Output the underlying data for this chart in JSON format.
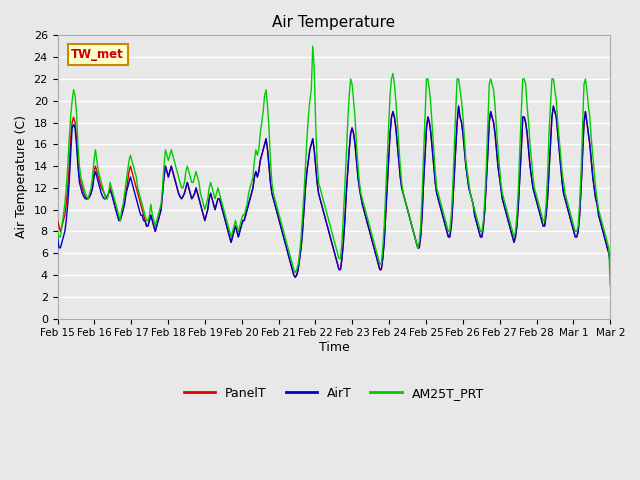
{
  "title": "Air Temperature",
  "ylabel": "Air Temperature (C)",
  "xlabel": "Time",
  "annotation_text": "TW_met",
  "annotation_bg": "#ffffcc",
  "annotation_border": "#cc8800",
  "annotation_text_color": "#cc0000",
  "ylim": [
    0,
    26
  ],
  "yticks": [
    0,
    2,
    4,
    6,
    8,
    10,
    12,
    14,
    16,
    18,
    20,
    22,
    24,
    26
  ],
  "bg_color": "#e8e8e8",
  "grid_color": "#ffffff",
  "legend_labels": [
    "PanelT",
    "AirT",
    "AM25T_PRT"
  ],
  "legend_colors": [
    "#dd0000",
    "#0000cc",
    "#00cc00"
  ],
  "line_width": 1.0,
  "xtick_labels": [
    "Feb 15",
    "Feb 16",
    "Feb 17",
    "Feb 18",
    "Feb 19",
    "Feb 20",
    "Feb 21",
    "Feb 22",
    "Feb 23",
    "Feb 24",
    "Feb 25",
    "Feb 26",
    "Feb 27",
    "Feb 28",
    "Mar 1",
    "Mar 2"
  ],
  "panelT": [
    9.0,
    8.5,
    8.0,
    8.5,
    9.0,
    9.5,
    10.5,
    12.0,
    14.0,
    16.5,
    18.0,
    18.5,
    18.0,
    16.5,
    14.5,
    13.0,
    12.5,
    12.0,
    11.5,
    11.2,
    11.0,
    11.0,
    11.2,
    11.5,
    12.0,
    13.5,
    14.0,
    13.5,
    13.0,
    12.5,
    12.0,
    11.8,
    11.5,
    11.2,
    11.0,
    11.5,
    12.0,
    11.5,
    11.0,
    10.5,
    10.0,
    9.5,
    9.2,
    9.0,
    9.5,
    10.0,
    11.0,
    11.5,
    12.5,
    13.5,
    14.0,
    13.5,
    13.0,
    12.5,
    12.0,
    11.5,
    11.0,
    10.5,
    10.0,
    9.5,
    9.0,
    8.5,
    8.5,
    9.0,
    9.5,
    9.0,
    8.5,
    8.0,
    8.5,
    9.0,
    9.5,
    10.0,
    11.5,
    13.0,
    14.0,
    13.5,
    13.0,
    13.5,
    14.0,
    13.5,
    13.0,
    12.5,
    12.0,
    11.5,
    11.2,
    11.0,
    11.2,
    11.5,
    12.0,
    12.5,
    12.0,
    11.5,
    11.0,
    11.2,
    11.5,
    12.0,
    11.5,
    11.0,
    10.5,
    10.0,
    9.5,
    9.0,
    9.5,
    10.0,
    11.0,
    11.5,
    11.0,
    10.5,
    10.0,
    10.5,
    11.0,
    11.0,
    10.5,
    10.0,
    9.5,
    9.0,
    8.5,
    8.0,
    7.5,
    7.0,
    7.5,
    8.0,
    8.5,
    8.0,
    7.5,
    8.0,
    8.5,
    9.0,
    9.0,
    9.5,
    10.0,
    10.5,
    11.0,
    11.5,
    12.0,
    13.0,
    13.5,
    13.0,
    13.5,
    14.5,
    15.0,
    15.5,
    16.0,
    16.5,
    15.5,
    14.0,
    12.5,
    11.5,
    11.0,
    10.5,
    10.0,
    9.5,
    9.0,
    8.5,
    8.0,
    7.5,
    7.0,
    6.5,
    6.0,
    5.5,
    5.0,
    4.5,
    4.0,
    3.8,
    4.0,
    4.5,
    5.5,
    6.5,
    8.0,
    10.0,
    12.0,
    13.5,
    14.5,
    15.5,
    16.0,
    16.5,
    15.5,
    14.0,
    12.5,
    11.5,
    11.0,
    10.5,
    10.0,
    9.5,
    9.0,
    8.5,
    8.0,
    7.5,
    7.0,
    6.5,
    6.0,
    5.5,
    5.0,
    4.5,
    4.5,
    5.5,
    7.0,
    9.0,
    11.5,
    13.5,
    15.5,
    17.0,
    17.5,
    17.0,
    16.0,
    14.5,
    13.0,
    12.0,
    11.2,
    10.5,
    10.0,
    9.5,
    9.0,
    8.5,
    8.0,
    7.5,
    7.0,
    6.5,
    6.0,
    5.5,
    5.0,
    4.5,
    4.5,
    5.5,
    7.0,
    9.5,
    12.0,
    14.5,
    17.0,
    18.5,
    19.0,
    18.5,
    17.5,
    16.0,
    14.5,
    13.0,
    12.0,
    11.5,
    11.0,
    10.5,
    10.0,
    9.5,
    9.0,
    8.5,
    8.0,
    7.5,
    7.0,
    6.5,
    6.5,
    7.5,
    9.5,
    12.5,
    15.0,
    17.5,
    18.5,
    18.0,
    17.0,
    15.5,
    14.0,
    12.5,
    11.5,
    11.0,
    10.5,
    10.0,
    9.5,
    9.0,
    8.5,
    8.0,
    7.5,
    7.5,
    8.5,
    10.5,
    13.0,
    15.5,
    18.0,
    19.5,
    18.5,
    18.0,
    17.0,
    15.5,
    14.0,
    13.0,
    12.0,
    11.5,
    11.0,
    10.5,
    9.5,
    9.0,
    8.5,
    8.0,
    7.5,
    7.5,
    8.5,
    10.0,
    12.5,
    15.0,
    18.0,
    19.0,
    18.5,
    18.0,
    17.0,
    15.5,
    14.0,
    13.0,
    12.0,
    11.0,
    10.5,
    10.0,
    9.5,
    9.0,
    8.5,
    8.0,
    7.5,
    7.0,
    7.5,
    8.5,
    10.5,
    13.0,
    15.5,
    18.5,
    18.5,
    18.0,
    17.0,
    15.5,
    14.0,
    13.0,
    12.0,
    11.5,
    11.0,
    10.5,
    10.0,
    9.5,
    9.0,
    8.5,
    8.5,
    9.5,
    11.0,
    13.5,
    16.0,
    18.5,
    19.5,
    19.0,
    18.5,
    17.0,
    15.5,
    14.0,
    12.5,
    11.5,
    11.0,
    10.5,
    10.0,
    9.5,
    9.0,
    8.5,
    8.0,
    7.5,
    7.5,
    8.0,
    9.5,
    12.0,
    15.0,
    18.0,
    19.0,
    18.0,
    17.0,
    16.0,
    14.5,
    13.0,
    12.0,
    11.0,
    10.5,
    9.5,
    9.0,
    8.5,
    8.0,
    7.5,
    7.0,
    6.5,
    6.0,
    5.5
  ],
  "airT": [
    7.5,
    6.5,
    6.5,
    7.0,
    7.5,
    8.0,
    9.0,
    10.5,
    12.5,
    15.0,
    17.5,
    17.8,
    17.5,
    16.0,
    14.0,
    12.5,
    12.0,
    11.5,
    11.2,
    11.0,
    11.0,
    11.0,
    11.2,
    11.5,
    12.0,
    13.0,
    13.5,
    13.0,
    12.5,
    12.0,
    11.5,
    11.2,
    11.0,
    11.0,
    11.2,
    11.5,
    11.8,
    11.5,
    11.0,
    10.5,
    10.0,
    9.5,
    9.0,
    9.0,
    9.5,
    10.0,
    10.5,
    11.5,
    12.0,
    12.5,
    13.0,
    12.5,
    12.0,
    11.5,
    11.0,
    10.5,
    10.0,
    9.5,
    9.5,
    9.0,
    9.0,
    8.5,
    8.5,
    9.0,
    9.5,
    9.0,
    8.5,
    8.0,
    8.5,
    9.0,
    9.5,
    10.0,
    11.5,
    13.0,
    14.0,
    13.5,
    13.0,
    13.5,
    14.0,
    13.5,
    13.0,
    12.5,
    12.0,
    11.5,
    11.2,
    11.0,
    11.2,
    11.5,
    12.0,
    12.5,
    12.0,
    11.5,
    11.0,
    11.2,
    11.5,
    12.0,
    11.5,
    11.0,
    10.5,
    10.0,
    9.5,
    9.0,
    9.5,
    10.0,
    11.0,
    11.5,
    11.0,
    10.5,
    10.0,
    10.5,
    11.0,
    11.0,
    10.5,
    10.0,
    9.5,
    9.0,
    8.5,
    8.0,
    7.5,
    7.0,
    7.5,
    8.0,
    8.5,
    8.0,
    7.5,
    8.0,
    8.5,
    9.0,
    9.0,
    9.5,
    10.0,
    10.5,
    11.0,
    11.5,
    12.0,
    13.0,
    13.5,
    13.0,
    13.5,
    14.5,
    15.0,
    15.5,
    16.0,
    16.5,
    15.5,
    14.0,
    12.5,
    11.5,
    11.0,
    10.5,
    10.0,
    9.5,
    9.0,
    8.5,
    8.0,
    7.5,
    7.0,
    6.5,
    6.0,
    5.5,
    5.0,
    4.5,
    4.0,
    3.8,
    4.0,
    4.5,
    5.5,
    6.5,
    8.0,
    10.0,
    12.0,
    13.5,
    14.5,
    15.5,
    16.0,
    16.5,
    15.5,
    14.0,
    12.5,
    11.5,
    11.0,
    10.5,
    10.0,
    9.5,
    9.0,
    8.5,
    8.0,
    7.5,
    7.0,
    6.5,
    6.0,
    5.5,
    5.0,
    4.5,
    4.5,
    5.5,
    7.0,
    9.0,
    11.5,
    13.5,
    15.5,
    17.0,
    17.5,
    17.0,
    16.0,
    14.5,
    13.0,
    12.0,
    11.2,
    10.5,
    10.0,
    9.5,
    9.0,
    8.5,
    8.0,
    7.5,
    7.0,
    6.5,
    6.0,
    5.5,
    5.0,
    4.5,
    4.5,
    5.5,
    7.0,
    9.5,
    12.0,
    14.5,
    17.0,
    18.5,
    19.0,
    18.5,
    17.5,
    16.0,
    14.5,
    13.0,
    12.0,
    11.5,
    11.0,
    10.5,
    10.0,
    9.5,
    9.0,
    8.5,
    8.0,
    7.5,
    7.0,
    6.5,
    6.5,
    7.5,
    9.5,
    12.5,
    15.0,
    17.5,
    18.5,
    18.0,
    17.0,
    15.5,
    14.0,
    12.5,
    11.5,
    11.0,
    10.5,
    10.0,
    9.5,
    9.0,
    8.5,
    8.0,
    7.5,
    7.5,
    8.5,
    10.5,
    13.0,
    15.5,
    18.0,
    19.5,
    18.5,
    18.0,
    17.0,
    15.5,
    14.0,
    13.0,
    12.0,
    11.5,
    11.0,
    10.5,
    9.5,
    9.0,
    8.5,
    8.0,
    7.5,
    7.5,
    8.5,
    10.0,
    12.5,
    15.0,
    18.0,
    19.0,
    18.5,
    18.0,
    17.0,
    15.5,
    14.0,
    13.0,
    12.0,
    11.0,
    10.5,
    10.0,
    9.5,
    9.0,
    8.5,
    8.0,
    7.5,
    7.0,
    7.5,
    8.5,
    10.5,
    13.0,
    15.5,
    18.5,
    18.5,
    18.0,
    17.0,
    15.5,
    14.0,
    13.0,
    12.0,
    11.5,
    11.0,
    10.5,
    10.0,
    9.5,
    9.0,
    8.5,
    8.5,
    9.5,
    11.0,
    13.5,
    16.0,
    18.5,
    19.5,
    19.0,
    18.5,
    17.0,
    15.5,
    14.0,
    12.5,
    11.5,
    11.0,
    10.5,
    10.0,
    9.5,
    9.0,
    8.5,
    8.0,
    7.5,
    7.5,
    8.0,
    9.5,
    12.0,
    15.0,
    18.0,
    19.0,
    18.0,
    17.0,
    16.0,
    14.5,
    13.0,
    12.0,
    11.0,
    10.5,
    9.5,
    9.0,
    8.5,
    8.0,
    7.5,
    7.0,
    6.5,
    6.0,
    5.0
  ],
  "am25T": [
    8.0,
    7.5,
    7.5,
    8.5,
    9.5,
    10.5,
    12.0,
    14.0,
    16.5,
    18.5,
    20.0,
    21.0,
    20.5,
    19.0,
    16.0,
    14.0,
    13.0,
    12.5,
    12.0,
    11.5,
    11.2,
    11.0,
    11.5,
    12.0,
    13.0,
    14.5,
    15.5,
    14.5,
    13.5,
    13.0,
    12.5,
    12.0,
    11.5,
    11.0,
    11.0,
    11.5,
    12.5,
    12.0,
    11.5,
    11.0,
    10.5,
    10.0,
    9.5,
    9.0,
    10.0,
    10.5,
    11.5,
    12.5,
    13.5,
    14.5,
    15.0,
    14.5,
    14.0,
    13.5,
    13.0,
    12.0,
    11.5,
    11.0,
    10.5,
    10.0,
    9.5,
    9.0,
    9.0,
    9.5,
    10.5,
    9.5,
    9.0,
    8.5,
    9.0,
    9.5,
    10.0,
    10.5,
    12.0,
    14.0,
    15.5,
    15.0,
    14.5,
    15.0,
    15.5,
    15.0,
    14.5,
    14.0,
    13.5,
    13.0,
    12.5,
    12.0,
    12.0,
    12.5,
    13.5,
    14.0,
    13.5,
    13.0,
    12.5,
    12.5,
    13.0,
    13.5,
    13.0,
    12.5,
    11.5,
    11.0,
    10.5,
    10.0,
    10.5,
    11.0,
    12.0,
    12.5,
    12.0,
    11.5,
    11.0,
    11.5,
    12.0,
    11.5,
    11.0,
    10.5,
    10.0,
    9.5,
    9.0,
    8.5,
    8.0,
    7.5,
    8.0,
    8.5,
    9.0,
    8.5,
    8.0,
    8.5,
    9.0,
    9.5,
    9.5,
    10.0,
    10.5,
    11.5,
    12.0,
    12.5,
    13.0,
    14.5,
    15.5,
    15.0,
    15.5,
    17.0,
    18.0,
    19.0,
    20.5,
    21.0,
    19.5,
    17.5,
    14.5,
    12.5,
    11.5,
    11.0,
    10.5,
    10.0,
    9.5,
    9.0,
    8.5,
    8.0,
    7.5,
    7.0,
    6.5,
    6.0,
    5.5,
    5.0,
    4.5,
    4.2,
    4.5,
    5.0,
    6.0,
    7.5,
    9.5,
    11.5,
    14.0,
    16.5,
    18.5,
    20.0,
    21.0,
    25.0,
    23.0,
    18.0,
    14.5,
    12.5,
    12.0,
    11.5,
    11.0,
    10.5,
    10.0,
    9.5,
    9.0,
    8.5,
    8.0,
    7.5,
    7.0,
    6.5,
    6.0,
    5.5,
    5.5,
    7.0,
    9.5,
    12.0,
    15.0,
    18.0,
    20.5,
    22.0,
    21.5,
    20.0,
    18.5,
    16.0,
    14.0,
    12.5,
    11.5,
    11.0,
    10.5,
    10.0,
    9.5,
    9.0,
    8.5,
    8.0,
    7.5,
    7.0,
    6.5,
    6.0,
    5.5,
    5.0,
    5.0,
    6.5,
    8.5,
    11.5,
    14.5,
    17.5,
    20.5,
    22.0,
    22.5,
    21.5,
    20.0,
    18.0,
    16.0,
    14.0,
    12.5,
    11.5,
    11.0,
    10.5,
    10.0,
    9.5,
    9.0,
    8.5,
    8.0,
    7.5,
    7.0,
    6.5,
    7.0,
    8.5,
    11.5,
    15.0,
    18.5,
    22.0,
    22.0,
    21.0,
    19.5,
    17.5,
    15.5,
    13.5,
    12.0,
    11.5,
    11.0,
    10.5,
    10.0,
    9.5,
    9.0,
    8.5,
    8.0,
    8.0,
    9.5,
    12.0,
    15.5,
    19.0,
    22.0,
    22.0,
    21.0,
    20.0,
    18.5,
    16.5,
    14.5,
    13.5,
    12.5,
    11.5,
    11.0,
    10.5,
    10.0,
    9.5,
    9.0,
    8.5,
    8.0,
    8.0,
    9.0,
    11.0,
    14.0,
    17.5,
    21.5,
    22.0,
    21.5,
    21.0,
    19.5,
    17.5,
    15.5,
    14.0,
    12.5,
    11.5,
    11.0,
    10.5,
    10.0,
    9.5,
    9.0,
    8.5,
    8.0,
    7.5,
    8.0,
    9.5,
    12.0,
    15.5,
    19.0,
    22.0,
    22.0,
    21.5,
    19.5,
    18.0,
    16.0,
    14.5,
    13.0,
    12.0,
    11.5,
    11.0,
    10.5,
    10.0,
    9.5,
    9.0,
    9.0,
    10.5,
    13.0,
    17.0,
    19.5,
    22.0,
    22.0,
    21.0,
    20.0,
    18.0,
    16.5,
    15.0,
    13.5,
    12.5,
    11.5,
    11.0,
    10.5,
    10.0,
    9.5,
    9.0,
    8.5,
    8.0,
    8.0,
    8.5,
    10.5,
    13.5,
    17.5,
    21.5,
    22.0,
    21.0,
    19.5,
    18.5,
    16.5,
    15.0,
    13.5,
    12.0,
    11.0,
    10.0,
    9.5,
    9.0,
    8.5,
    8.0,
    7.5,
    7.0,
    6.5,
    3.0
  ]
}
